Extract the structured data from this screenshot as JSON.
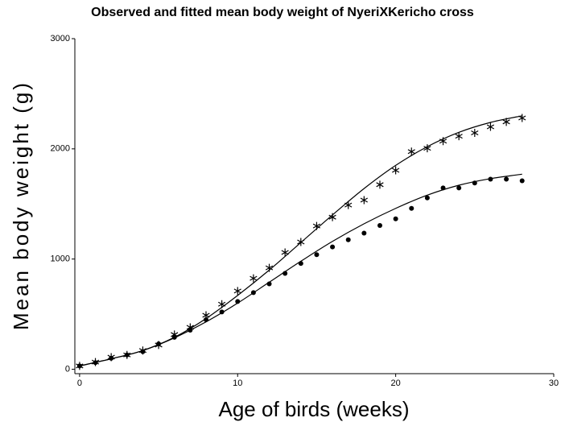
{
  "chart_data": {
    "type": "scatter",
    "title": "Observed and fitted mean body weight of NyeriXKericho cross",
    "xlabel": "Age of birds (weeks)",
    "ylabel": "Mean body weight (g)",
    "color": "#000000",
    "xlim": [
      -0.3,
      30
    ],
    "ylim": [
      -40,
      3000
    ],
    "xticks": [
      0,
      10,
      20,
      30
    ],
    "yticks": [
      0,
      1000,
      2000,
      3000
    ],
    "series": [
      {
        "type": "scatter",
        "marker": "star",
        "x": [
          0,
          1,
          2,
          3,
          4,
          5,
          6,
          7,
          8,
          9,
          10,
          11,
          12,
          13,
          14,
          15,
          16,
          17,
          18,
          19,
          20,
          21,
          22,
          23,
          24,
          25,
          26,
          27,
          28
        ],
        "values": [
          30,
          65,
          110,
          130,
          170,
          220,
          315,
          380,
          490,
          590,
          710,
          825,
          920,
          1060,
          1155,
          1300,
          1380,
          1490,
          1535,
          1675,
          1805,
          1975,
          2005,
          2070,
          2115,
          2145,
          2200,
          2245,
          2280
        ]
      },
      {
        "type": "scatter",
        "marker": "dot",
        "x": [
          0,
          1,
          2,
          3,
          4,
          5,
          6,
          7,
          8,
          9,
          10,
          11,
          12,
          13,
          14,
          15,
          16,
          17,
          18,
          19,
          20,
          21,
          22,
          23,
          24,
          25,
          26,
          27,
          28
        ],
        "values": [
          30,
          60,
          100,
          130,
          160,
          230,
          290,
          355,
          450,
          520,
          615,
          695,
          775,
          870,
          960,
          1040,
          1110,
          1175,
          1235,
          1305,
          1365,
          1460,
          1555,
          1645,
          1645,
          1690,
          1725,
          1725,
          1710
        ]
      },
      {
        "type": "line",
        "x": [
          0,
          2,
          4,
          6,
          8,
          10,
          12,
          14,
          16,
          18,
          20,
          22,
          24,
          26,
          28
        ],
        "values": [
          30,
          95,
          170,
          290,
          460,
          670,
          900,
          1150,
          1400,
          1640,
          1850,
          2020,
          2150,
          2240,
          2300
        ]
      },
      {
        "type": "line",
        "x": [
          0,
          2,
          4,
          6,
          8,
          10,
          12,
          14,
          16,
          18,
          20,
          22,
          24,
          26,
          28
        ],
        "values": [
          30,
          95,
          170,
          285,
          430,
          600,
          790,
          980,
          1160,
          1320,
          1460,
          1580,
          1670,
          1730,
          1770
        ]
      }
    ]
  }
}
